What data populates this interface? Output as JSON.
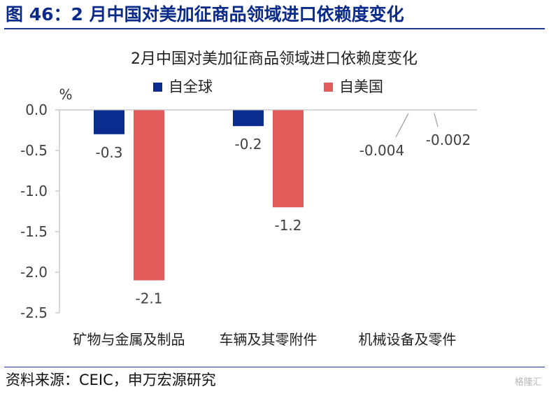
{
  "figure_title": "图 46：2 月中国对美加征商品领域进口依赖度变化",
  "source": "资料来源：CEIC，申万宏源研究",
  "watermark": "格隆汇",
  "colors": {
    "title": "#0a2a8a",
    "series_global": "#0b2c8f",
    "series_us": "#e25a5a",
    "axis": "#bfbfbf",
    "text": "#404040"
  },
  "chart_data": {
    "type": "bar",
    "title": "2月中国对美加征商品领域进口依赖度变化",
    "ylabel": "%",
    "ylim": [
      -2.5,
      0.0
    ],
    "yticks": [
      "0.0",
      "-0.5",
      "-1.0",
      "-1.5",
      "-2.0",
      "-2.5"
    ],
    "categories": [
      "矿物与金属及制品",
      "车辆及其零附件",
      "机械设备及零件"
    ],
    "series": [
      {
        "name": "自全球",
        "values": [
          -0.3,
          -0.2,
          -0.004
        ],
        "labels": [
          "-0.3",
          "-0.2",
          "-0.004"
        ]
      },
      {
        "name": "自美国",
        "values": [
          -2.1,
          -1.2,
          -0.002
        ],
        "labels": [
          "-2.1",
          "-1.2",
          "-0.002"
        ]
      }
    ],
    "legend": "top",
    "grid": false
  }
}
